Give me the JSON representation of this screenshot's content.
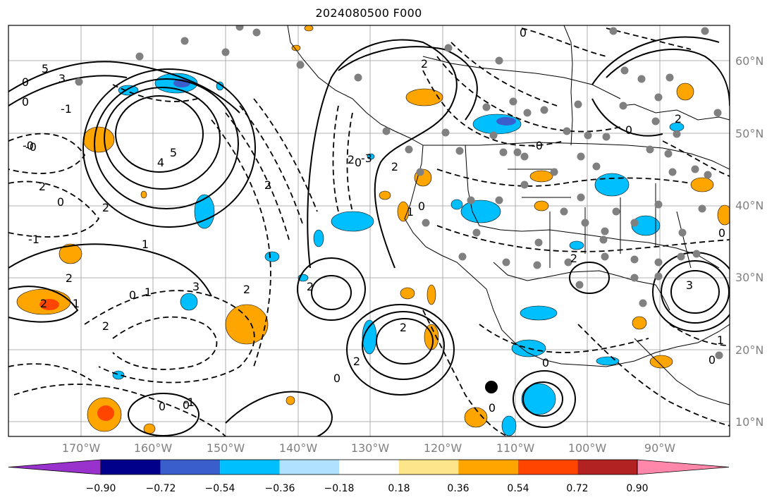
{
  "title": "2024080500 F000",
  "lat_labels": [
    "60°N",
    "50°N",
    "40°N",
    "30°N",
    "20°N",
    "10°N"
  ],
  "lon_labels": [
    "170°W",
    "160°W",
    "150°W",
    "140°W",
    "130°W",
    "120°W",
    "110°W",
    "100°W",
    "90°W"
  ],
  "colorbar": {
    "colors": [
      "#9932cc",
      "#00008b",
      "#3a5fcd",
      "#00bfff",
      "#b0e2ff",
      "#ffffff",
      "#fde68a",
      "#ffa500",
      "#ff4500",
      "#b22222",
      "#ff88aa"
    ],
    "labels": [
      "−0.90",
      "−0.72",
      "−0.54",
      "−0.36",
      "−0.18",
      "0.18",
      "0.36",
      "0.54",
      "0.72",
      "0.90"
    ]
  },
  "contour_labels": [
    "5",
    "3",
    "0",
    "-1",
    "0",
    "5",
    "4",
    "-0",
    "-0",
    "-1",
    "2",
    "1",
    "2",
    "2",
    "1",
    "0",
    "3",
    "2",
    "2",
    "1",
    "0",
    "2",
    "-3",
    "2",
    "2",
    "0",
    "2",
    "1",
    "0",
    "-0",
    "0",
    "0",
    "0",
    "2",
    "0",
    "3",
    "2",
    "0",
    "0",
    "1",
    "0",
    "-1",
    "2",
    "2",
    "2",
    "0",
    "2",
    "0"
  ],
  "legend": {}
}
